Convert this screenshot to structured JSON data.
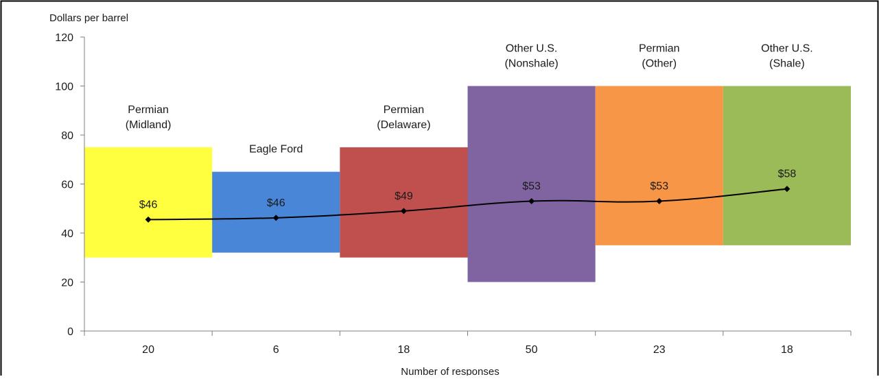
{
  "chart_data": {
    "type": "floating-bar-with-line",
    "ylabel": "Dollars per barrel",
    "xlabel": "Number of responses",
    "ylim": [
      0,
      120
    ],
    "yticks": [
      0,
      20,
      40,
      60,
      80,
      100,
      120
    ],
    "categories": [
      "20",
      "6",
      "18",
      "50",
      "23",
      "18"
    ],
    "bars": [
      {
        "label": [
          "Permian",
          "(Midland)"
        ],
        "low": 30,
        "high": 75,
        "color": "#FFFF40"
      },
      {
        "label": [
          "Eagle Ford"
        ],
        "low": 32,
        "high": 65,
        "color": "#4A86D8"
      },
      {
        "label": [
          "Permian",
          "(Delaware)"
        ],
        "low": 30,
        "high": 75,
        "color": "#C0504D"
      },
      {
        "label": [
          "Other U.S.",
          "(Nonshale)"
        ],
        "low": 20,
        "high": 100,
        "color": "#8064A2"
      },
      {
        "label": [
          "Permian",
          "(Other)"
        ],
        "low": 35,
        "high": 100,
        "color": "#F79646"
      },
      {
        "label": [
          "Other U.S.",
          "(Shale)"
        ],
        "low": 35,
        "high": 100,
        "color": "#9BBB59"
      }
    ],
    "series": [
      {
        "values": [
          45.5,
          46.2,
          49,
          53,
          53,
          58
        ],
        "data_labels": [
          "$46",
          "$46",
          "$49",
          "$53",
          "$53",
          "$58"
        ]
      }
    ]
  }
}
